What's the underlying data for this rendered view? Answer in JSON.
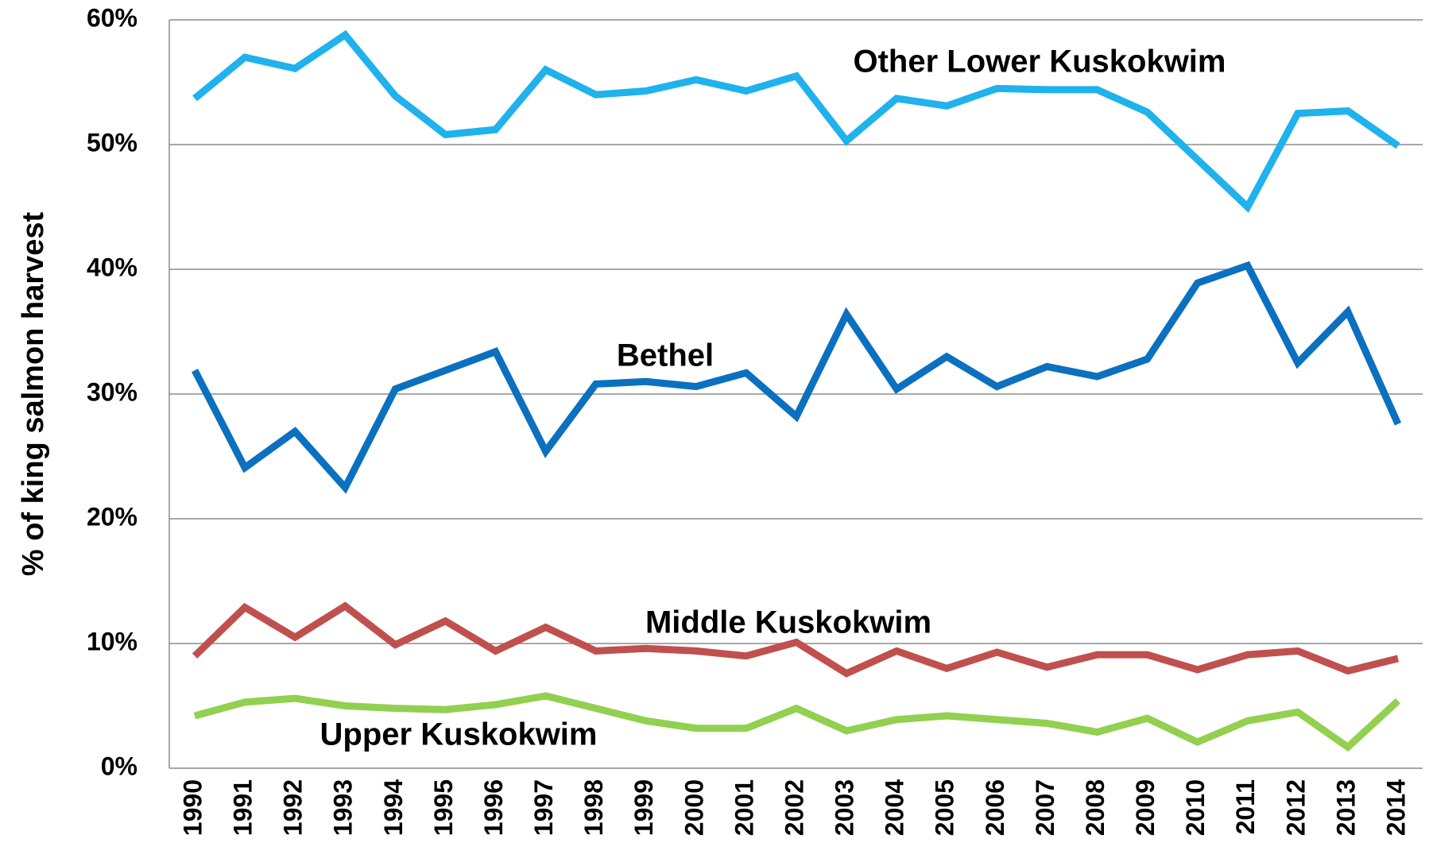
{
  "chart_data": {
    "type": "line",
    "y_label": "% of king salmon harvest",
    "categories": [
      "1990",
      "1991",
      "1992",
      "1993",
      "1994",
      "1995",
      "1996",
      "1997",
      "1998",
      "1999",
      "2000",
      "2001",
      "2002",
      "2003",
      "2004",
      "2005",
      "2006",
      "2007",
      "2008",
      "2009",
      "2010",
      "2011",
      "2012",
      "2013",
      "2014"
    ],
    "series": [
      {
        "name": "Other Lower Kuskokwim",
        "color": "#1fb2ec",
        "values": [
          53.7,
          57.0,
          56.1,
          58.8,
          53.9,
          50.8,
          51.2,
          56.0,
          54.0,
          54.3,
          55.2,
          54.3,
          55.5,
          50.3,
          53.7,
          53.1,
          54.5,
          54.4,
          54.4,
          52.6,
          48.8,
          45.0,
          52.5,
          52.7,
          49.9
        ]
      },
      {
        "name": "Bethel",
        "color": "#0b70bf",
        "values": [
          31.9,
          24.1,
          27.0,
          22.5,
          30.4,
          31.9,
          33.4,
          25.4,
          30.8,
          31.0,
          30.6,
          31.7,
          28.2,
          36.4,
          30.4,
          33.0,
          30.6,
          32.2,
          31.4,
          32.8,
          38.9,
          40.3,
          32.5,
          36.6,
          27.6
        ]
      },
      {
        "name": "Middle Kuskokwim",
        "color": "#c0504d",
        "values": [
          9.0,
          12.9,
          10.5,
          13.0,
          9.9,
          11.8,
          9.4,
          11.3,
          9.4,
          9.6,
          9.4,
          9.0,
          10.1,
          7.6,
          9.4,
          8.0,
          9.3,
          8.1,
          9.1,
          9.1,
          7.9,
          9.1,
          9.4,
          7.8,
          8.8
        ]
      },
      {
        "name": "Upper Kuskokwim",
        "color": "#92d050",
        "values": [
          4.2,
          5.3,
          5.6,
          5.0,
          4.8,
          4.7,
          5.1,
          5.8,
          4.8,
          3.8,
          3.2,
          3.2,
          4.8,
          3.0,
          3.9,
          4.2,
          3.9,
          3.6,
          2.9,
          4.0,
          2.1,
          3.8,
          4.5,
          1.7,
          5.4
        ]
      }
    ],
    "ylim": [
      0,
      60
    ],
    "yticks": [
      {
        "value": 0,
        "label": "0%"
      },
      {
        "value": 10,
        "label": "10%"
      },
      {
        "value": 20,
        "label": "20%"
      },
      {
        "value": 30,
        "label": "30%"
      },
      {
        "value": 40,
        "label": "40%"
      },
      {
        "value": 50,
        "label": "50%"
      },
      {
        "value": 60,
        "label": "60%"
      }
    ],
    "grid": true
  }
}
